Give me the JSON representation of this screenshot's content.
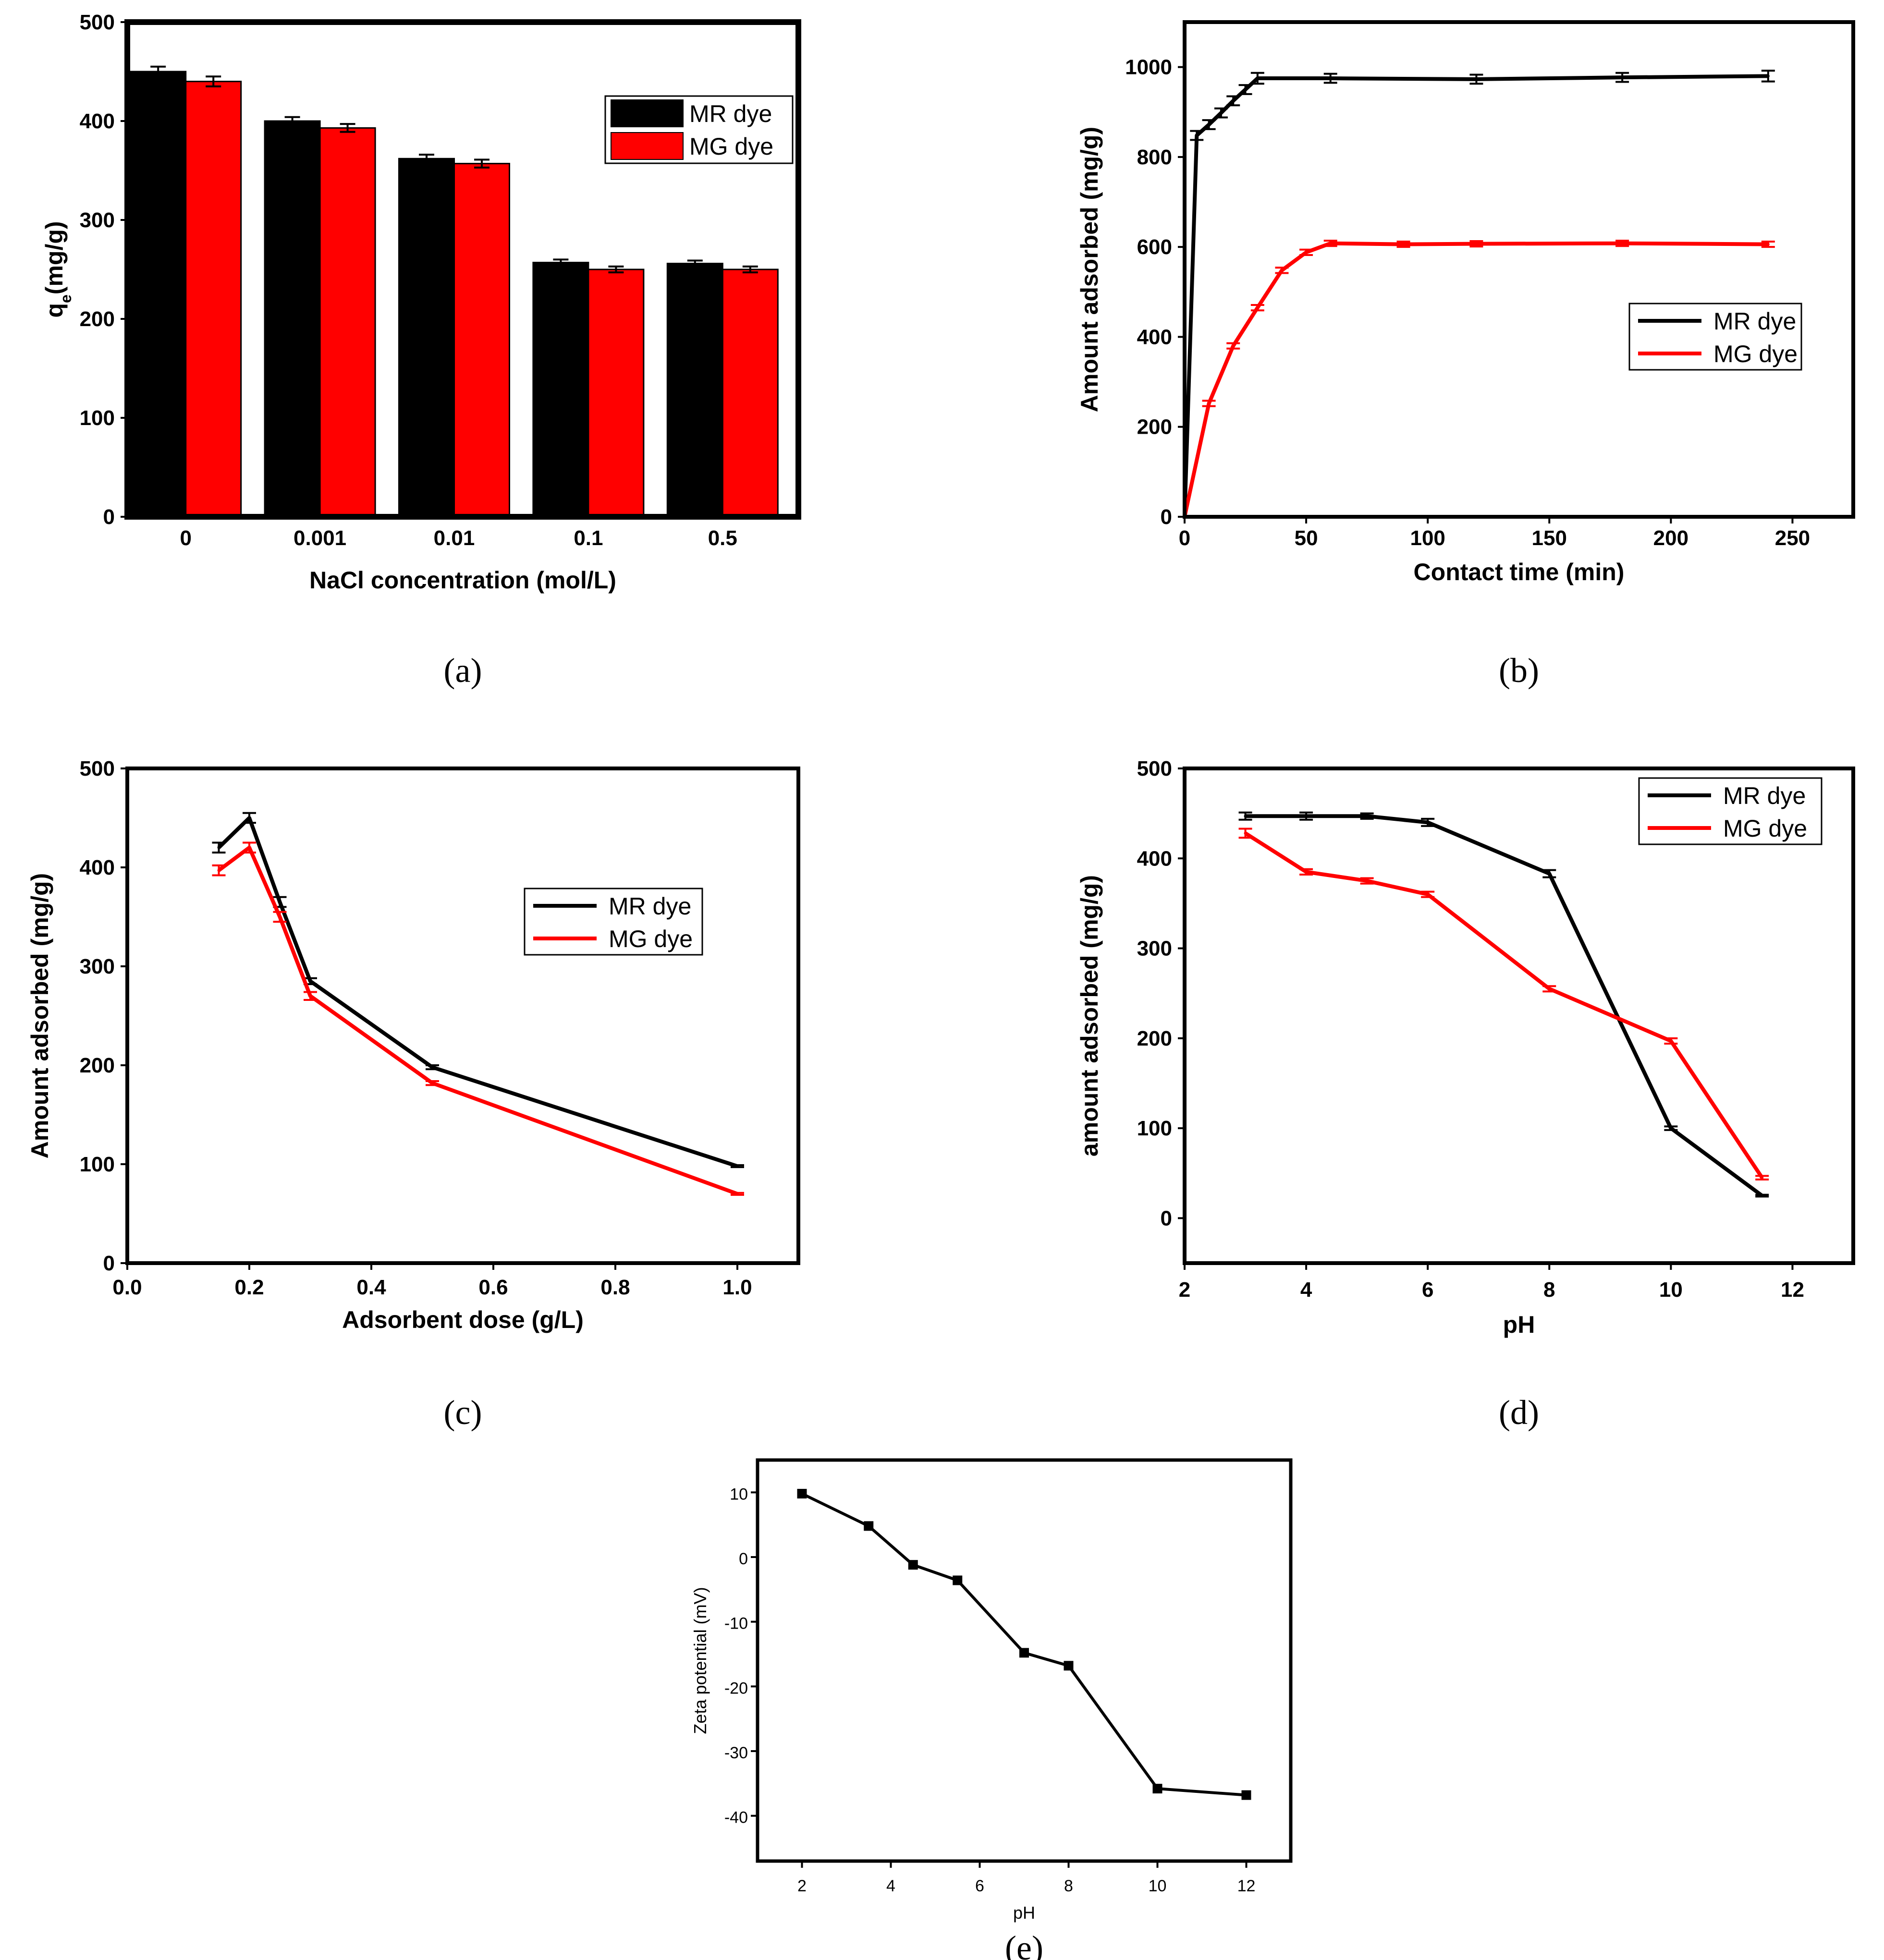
{
  "colors": {
    "mr": "#000000",
    "mg": "#ff0000",
    "frame": "#000000"
  },
  "chart_data": [
    {
      "id": "a",
      "type": "bar",
      "panel_label": "(a)",
      "xlabel": "NaCl concentration (mol/L)",
      "ylabel": "qe(mg/g)",
      "ylabel_main": "q",
      "ylabel_sub": "e",
      "ylabel_rest": "(mg/g)",
      "ylim": [
        0,
        500
      ],
      "yticks": [
        0,
        100,
        200,
        300,
        400,
        500
      ],
      "categories": [
        "0",
        "0.001",
        "0.01",
        "0.1",
        "0.5"
      ],
      "series": [
        {
          "name": "MR dye",
          "values": [
            450,
            400,
            362,
            257,
            256
          ],
          "errors": [
            5,
            4,
            4,
            3,
            3
          ]
        },
        {
          "name": "MG dye",
          "values": [
            440,
            393,
            357,
            250,
            250
          ],
          "errors": [
            5,
            4,
            4,
            3,
            3
          ]
        }
      ],
      "legend": "top-right"
    },
    {
      "id": "b",
      "type": "line",
      "panel_label": "(b)",
      "xlabel": "Contact time (min)",
      "ylabel": "Amount adsorbed (mg/g)",
      "xlim": [
        0,
        275
      ],
      "ylim": [
        0,
        1100
      ],
      "xticks": [
        0,
        50,
        100,
        150,
        200,
        250
      ],
      "yticks": [
        0,
        200,
        400,
        600,
        800,
        1000
      ],
      "series": [
        {
          "name": "MR dye",
          "x": [
            0,
            5,
            10,
            15,
            20,
            25,
            30,
            60,
            120,
            180,
            240
          ],
          "y": [
            0,
            848,
            872,
            898,
            925,
            950,
            975,
            975,
            973,
            977,
            980
          ],
          "errors": [
            0,
            10,
            10,
            10,
            10,
            10,
            12,
            10,
            10,
            10,
            12
          ]
        },
        {
          "name": "MG dye",
          "x": [
            0,
            10,
            20,
            30,
            40,
            50,
            60,
            90,
            120,
            180,
            240
          ],
          "y": [
            0,
            252,
            380,
            465,
            548,
            588,
            608,
            606,
            607,
            608,
            606
          ],
          "errors": [
            0,
            6,
            6,
            6,
            6,
            6,
            6,
            6,
            6,
            6,
            6
          ]
        }
      ],
      "legend": "middle-right"
    },
    {
      "id": "c",
      "type": "line",
      "panel_label": "(c)",
      "xlabel": "Adsorbent dose (g/L)",
      "ylabel": "Amount adsorbed (mg/g)",
      "xlim": [
        0,
        1.1
      ],
      "ylim": [
        0,
        500
      ],
      "xticks": [
        0,
        0.2,
        0.4,
        0.6,
        0.8,
        1.0
      ],
      "xtick_labels": [
        "0.0",
        "0.2",
        "0.4",
        "0.6",
        "0.8",
        "1.0"
      ],
      "yticks": [
        0,
        100,
        200,
        300,
        400,
        500
      ],
      "series": [
        {
          "name": "MR dye",
          "x": [
            0.15,
            0.2,
            0.25,
            0.3,
            0.5,
            1.0
          ],
          "y": [
            420,
            450,
            365,
            285,
            198,
            98
          ],
          "errors": [
            5,
            5,
            5,
            3,
            2,
            1
          ]
        },
        {
          "name": "MG dye",
          "x": [
            0.15,
            0.2,
            0.25,
            0.3,
            0.5,
            1.0
          ],
          "y": [
            397,
            420,
            350,
            270,
            182,
            70
          ],
          "errors": [
            5,
            5,
            5,
            4,
            2,
            1
          ]
        }
      ],
      "legend": "middle-right"
    },
    {
      "id": "d",
      "type": "line",
      "panel_label": "(d)",
      "xlabel": "pH",
      "ylabel": "amount adsorbed (mg/g)",
      "xlim": [
        2,
        13
      ],
      "ylim": [
        -50,
        500
      ],
      "xticks": [
        2,
        4,
        6,
        8,
        10,
        12
      ],
      "yticks": [
        0,
        100,
        200,
        300,
        400,
        500
      ],
      "series": [
        {
          "name": "MR dye",
          "x": [
            3,
            4,
            5,
            6,
            8,
            10,
            11.5
          ],
          "y": [
            447,
            447,
            447,
            440,
            383,
            100,
            25
          ],
          "errors": [
            4,
            4,
            3,
            4,
            4,
            2,
            1
          ]
        },
        {
          "name": "MG dye",
          "x": [
            3,
            4,
            5,
            6,
            8,
            10,
            11.5
          ],
          "y": [
            428,
            385,
            375,
            360,
            255,
            197,
            45
          ],
          "errors": [
            5,
            3,
            3,
            3,
            3,
            3,
            2
          ]
        }
      ],
      "legend": "top-right"
    },
    {
      "id": "e",
      "type": "line",
      "panel_label": "(e)",
      "xlabel": "pH",
      "ylabel": "Zeta potential (mV)",
      "xlim": [
        1,
        13
      ],
      "ylim": [
        -47,
        15
      ],
      "xticks": [
        2,
        4,
        6,
        8,
        10,
        12
      ],
      "yticks": [
        10,
        0,
        -10,
        -20,
        -30,
        -40
      ],
      "series": [
        {
          "name": "Zeta potential",
          "x": [
            2,
            3.5,
            4.5,
            5.5,
            7,
            8,
            10,
            12
          ],
          "y": [
            9.8,
            4.8,
            -1.2,
            -3.6,
            -14.8,
            -16.8,
            -35.8,
            -36.8
          ]
        }
      ]
    }
  ]
}
